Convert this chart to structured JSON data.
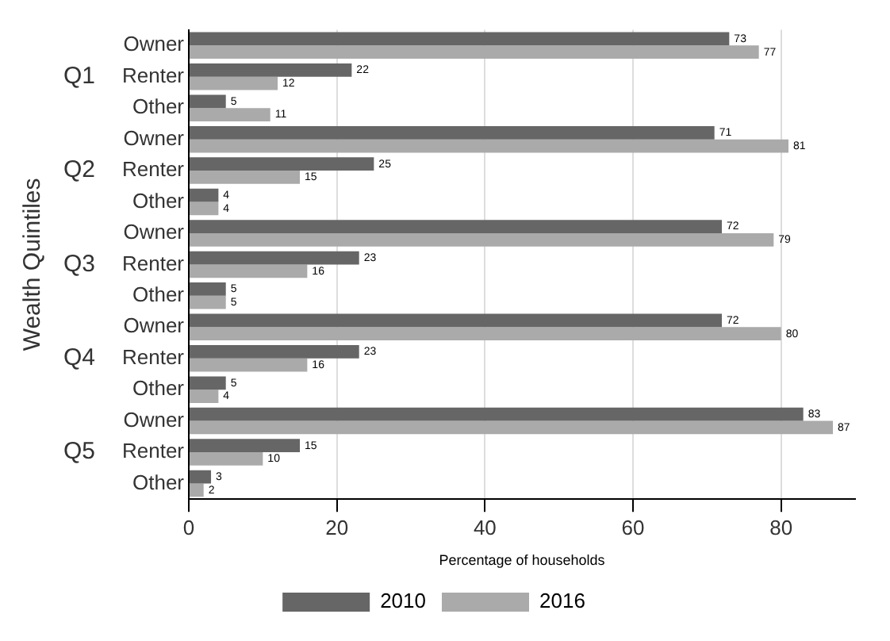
{
  "chart_data": {
    "type": "bar",
    "orientation": "horizontal",
    "xlabel": "Percentage of households",
    "ylabel": "Wealth Quintiles",
    "categories": [
      "Owner",
      "Renter",
      "Other",
      "Owner",
      "Renter",
      "Other",
      "Owner",
      "Renter",
      "Other",
      "Owner",
      "Renter",
      "Other",
      "Owner",
      "Renter",
      "Other"
    ],
    "annotations": [
      "Q1",
      "Q2",
      "Q3",
      "Q4",
      "Q5"
    ],
    "series": [
      {
        "name": "2010",
        "color": "#666666",
        "values": [
          73,
          22,
          5,
          71,
          25,
          4,
          72,
          23,
          5,
          72,
          23,
          5,
          83,
          15,
          3
        ]
      },
      {
        "name": "2016",
        "color": "#aaaaaa",
        "values": [
          77,
          12,
          11,
          81,
          15,
          4,
          79,
          16,
          5,
          80,
          16,
          4,
          87,
          10,
          2
        ]
      }
    ],
    "xlim": [
      0,
      90
    ],
    "xticks": [
      0,
      20,
      40,
      60,
      80
    ],
    "grid": "x",
    "legend": "bottom",
    "data_labels": true
  }
}
